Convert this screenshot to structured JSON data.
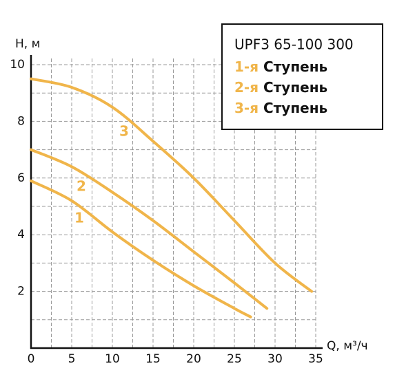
{
  "chart_data": {
    "type": "line",
    "title": "UPF3 65-100 300",
    "x_label": "Q, м³/ч",
    "y_label": "H, м",
    "xlim": [
      0,
      35
    ],
    "ylim": [
      0,
      10
    ],
    "xticks": [
      0,
      5,
      10,
      15,
      20,
      25,
      30,
      35
    ],
    "yticks": [
      2,
      4,
      6,
      8,
      10
    ],
    "xgrid": [
      2.5,
      5,
      7.5,
      10,
      12.5,
      15,
      17.5,
      20,
      22.5,
      25,
      27.5,
      30,
      32.5,
      35
    ],
    "ygrid": [
      1,
      2,
      3,
      4,
      5,
      6,
      7,
      8,
      9,
      10
    ],
    "grid": true,
    "series": [
      {
        "stage": "1-я",
        "name": "Ступень",
        "label": "1",
        "color": "#f0b54a",
        "x": [
          0,
          5,
          10,
          15,
          20,
          25,
          27
        ],
        "values": [
          5.9,
          5.2,
          4.1,
          3.1,
          2.2,
          1.4,
          1.1
        ]
      },
      {
        "stage": "2-я",
        "name": "Ступень",
        "label": "2",
        "color": "#f0b54a",
        "x": [
          0,
          5,
          10,
          15,
          20,
          25,
          29
        ],
        "values": [
          7.0,
          6.4,
          5.5,
          4.5,
          3.4,
          2.3,
          1.4
        ]
      },
      {
        "stage": "3-я",
        "name": "Ступень",
        "label": "3",
        "color": "#f0b54a",
        "x": [
          0,
          5,
          10,
          15,
          20,
          25,
          30,
          34.5
        ],
        "values": [
          9.5,
          9.2,
          8.5,
          7.3,
          6.0,
          4.5,
          3.0,
          2.0
        ]
      }
    ]
  }
}
